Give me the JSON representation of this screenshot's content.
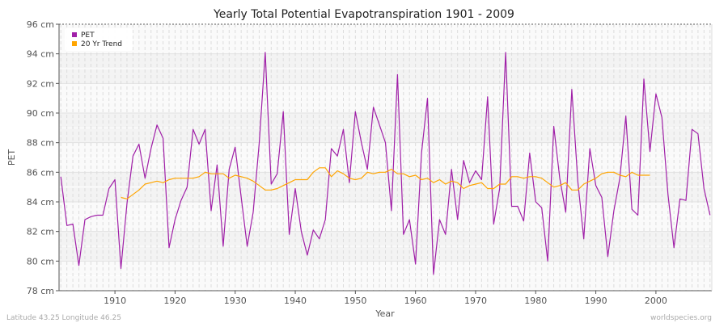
{
  "chart_data": {
    "type": "line",
    "title": "Yearly Total Potential Evapotranspiration 1901 - 2009",
    "xlabel": "Year",
    "ylabel": "PET",
    "y_unit": "cm",
    "xlim": [
      1901,
      2009
    ],
    "ylim": [
      78,
      96
    ],
    "yticks": [
      "78 cm",
      "80 cm",
      "82 cm",
      "84 cm",
      "86 cm",
      "88 cm",
      "90 cm",
      "92 cm",
      "94 cm",
      "96 cm"
    ],
    "xticks": [
      "1910",
      "1920",
      "1930",
      "1940",
      "1950",
      "1960",
      "1970",
      "1980",
      "1990",
      "2000"
    ],
    "grid": true,
    "legend_placement": "top-left",
    "series": [
      {
        "name": "PET",
        "color": "#a020a8",
        "start_year": 1901,
        "values": [
          85.7,
          82.4,
          82.5,
          79.7,
          82.8,
          83.0,
          83.1,
          83.1,
          84.9,
          85.5,
          79.5,
          83.9,
          87.1,
          87.9,
          85.6,
          87.6,
          89.2,
          88.3,
          80.9,
          82.8,
          84.1,
          85.0,
          88.9,
          87.9,
          88.9,
          83.4,
          86.5,
          81.0,
          86.2,
          87.7,
          84.3,
          81.0,
          83.3,
          88.0,
          94.1,
          85.2,
          85.9,
          90.1,
          81.8,
          84.9,
          82.0,
          80.4,
          82.1,
          81.5,
          82.8,
          87.6,
          87.1,
          88.9,
          85.3,
          90.1,
          88.0,
          86.2,
          90.4,
          89.2,
          88.0,
          83.4,
          92.6,
          81.8,
          82.8,
          79.8,
          87.3,
          91.0,
          79.1,
          82.8,
          81.8,
          86.2,
          82.8,
          86.8,
          85.3,
          86.1,
          85.5,
          91.1,
          82.5,
          84.9,
          94.1,
          83.7,
          83.7,
          82.7,
          87.3,
          84.0,
          83.6,
          80.0,
          89.1,
          85.6,
          83.3,
          91.6,
          85.4,
          81.5,
          87.6,
          85.1,
          84.3,
          80.3,
          83.4,
          85.6,
          89.8,
          83.5,
          83.1,
          92.3,
          87.4,
          91.3,
          89.7,
          84.5,
          80.9,
          84.2,
          84.1,
          88.9,
          88.6,
          84.9,
          83.1
        ]
      },
      {
        "name": "20 Yr Trend",
        "color": "#ffa500",
        "start_year": 1911,
        "values": [
          84.3,
          84.2,
          84.5,
          84.8,
          85.2,
          85.3,
          85.4,
          85.3,
          85.5,
          85.6,
          85.6,
          85.6,
          85.6,
          85.7,
          86.0,
          85.9,
          85.9,
          85.9,
          85.6,
          85.8,
          85.7,
          85.6,
          85.4,
          85.1,
          84.8,
          84.8,
          84.9,
          85.1,
          85.3,
          85.5,
          85.5,
          85.5,
          86.0,
          86.3,
          86.3,
          85.7,
          86.1,
          85.9,
          85.6,
          85.5,
          85.6,
          86.0,
          85.9,
          86.0,
          86.0,
          86.2,
          85.9,
          85.9,
          85.7,
          85.8,
          85.5,
          85.6,
          85.3,
          85.5,
          85.2,
          85.4,
          85.3,
          84.9,
          85.1,
          85.2,
          85.3,
          84.9,
          84.9,
          85.2,
          85.2,
          85.7,
          85.7,
          85.6,
          85.7,
          85.7,
          85.6,
          85.3,
          85.0,
          85.1,
          85.3,
          84.8,
          84.8,
          85.2,
          85.4,
          85.6,
          85.9,
          86.0,
          86.0,
          85.8,
          85.7,
          86.0,
          85.8,
          85.8,
          85.8
        ]
      }
    ]
  },
  "footer": {
    "left": "Latitude 43.25 Longitude 46.25",
    "right": "worldspecies.org"
  }
}
